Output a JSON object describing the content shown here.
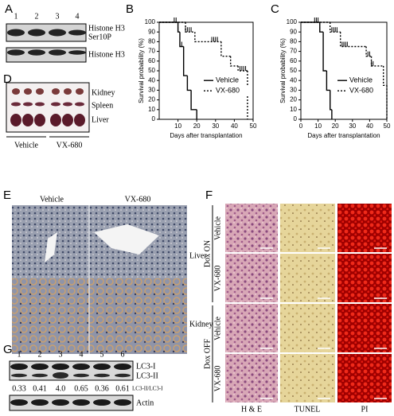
{
  "panel_labels": [
    "A",
    "B",
    "C",
    "D",
    "E",
    "F",
    "G"
  ],
  "panel_a": {
    "lanes": [
      "1",
      "2",
      "3",
      "4"
    ],
    "blots": [
      [
        "Histone H3",
        "Ser10P"
      ],
      [
        "Histone H3"
      ]
    ]
  },
  "chart_data": [
    {
      "type": "line",
      "step": true,
      "xlabel": "Days after transplantation",
      "ylabel": "Survival probability (%)",
      "xlim": [
        0,
        50
      ],
      "ylim": [
        0,
        100
      ],
      "xticks": [
        10,
        20,
        30,
        40,
        50
      ],
      "yticks": [
        0,
        10,
        20,
        30,
        40,
        50,
        60,
        70,
        80,
        90,
        100
      ],
      "legend": "right",
      "series": [
        {
          "name": "Vehicle",
          "color": "#000000",
          "dash": "solid",
          "x": [
            0,
            10,
            11,
            13,
            15,
            17,
            20
          ],
          "values": [
            100,
            90,
            75,
            45,
            30,
            10,
            0
          ],
          "censored": [
            8,
            9,
            10,
            11,
            12
          ]
        },
        {
          "name": "VX-680",
          "color": "#000000",
          "dash": "dotted",
          "x": [
            0,
            14,
            19,
            33,
            38,
            42,
            47
          ],
          "values": [
            100,
            90,
            80,
            65,
            55,
            50,
            0
          ],
          "censored": [
            14,
            15,
            16,
            17,
            28,
            29,
            30,
            31,
            43,
            44,
            45,
            46
          ]
        }
      ]
    },
    {
      "type": "line",
      "step": true,
      "xlabel": "Days after transplantation",
      "ylabel": "Survival probability (%)",
      "xlim": [
        0,
        50
      ],
      "ylim": [
        0,
        100
      ],
      "xticks": [
        0,
        10,
        20,
        30,
        40,
        50
      ],
      "yticks": [
        0,
        10,
        20,
        30,
        40,
        50,
        60,
        70,
        80,
        90,
        100
      ],
      "legend": "right",
      "series": [
        {
          "name": "Vehicle",
          "color": "#000000",
          "dash": "solid",
          "x": [
            0,
            11,
            13,
            15,
            17,
            18
          ],
          "values": [
            100,
            90,
            50,
            30,
            10,
            0
          ],
          "censored": [
            8,
            9,
            10,
            11
          ]
        },
        {
          "name": "VX-680",
          "color": "#000000",
          "dash": "dotted",
          "x": [
            0,
            17,
            23,
            38,
            41,
            48,
            50
          ],
          "values": [
            100,
            90,
            75,
            65,
            55,
            35,
            0
          ],
          "censored": [
            18,
            19,
            20,
            21,
            24,
            25,
            26,
            27,
            39,
            40,
            41,
            42
          ]
        }
      ]
    }
  ],
  "panel_d": {
    "organs": [
      "Kidney",
      "Spleen",
      "Liver"
    ],
    "groups": [
      "Vehicle",
      "VX-680"
    ]
  },
  "panel_e": {
    "columns": [
      "Vehicle",
      "VX-680"
    ],
    "rows": [
      "Liver",
      "Kidney"
    ]
  },
  "panel_f": {
    "groups": [
      {
        "name": "Dox ON",
        "rows": [
          "Vehicle",
          "VX-680"
        ]
      },
      {
        "name": "Dox OFF",
        "rows": [
          "Vehicle",
          "VX-680"
        ]
      }
    ],
    "columns": [
      "H & E",
      "TUNEL",
      "PI"
    ]
  },
  "panel_g": {
    "lanes": [
      "1",
      "2",
      "3",
      "4",
      "5",
      "6"
    ],
    "bands": [
      "LC3-I",
      "LC3-II"
    ],
    "ratios": [
      "0.33",
      "0.41",
      "4.0",
      "0.65",
      "0.36",
      "0.61"
    ],
    "ratio_label": "LC3-II/LC3-I",
    "loading": "Actin"
  }
}
